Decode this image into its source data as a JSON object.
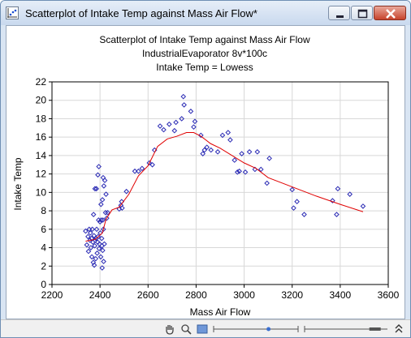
{
  "window": {
    "title": "Scatterplot of Intake Temp against Mass Air Flow*",
    "buttons": {
      "minimize": "minimize-icon",
      "maximize": "maximize-icon",
      "close": "close-icon"
    }
  },
  "chart_data": {
    "type": "scatter",
    "title": "Scatterplot of Intake Temp against Mass Air Flow",
    "subtitle": "IndustrialEvaporator 8v*100c",
    "subtitle2": "Intake Temp = Lowess",
    "xlabel": "Mass Air Flow",
    "ylabel": "Intake Temp",
    "xlim": [
      2200,
      3600
    ],
    "ylim": [
      0,
      22
    ],
    "xticks": [
      2200,
      2400,
      2600,
      2800,
      3000,
      3200,
      3400,
      3600
    ],
    "yticks": [
      0,
      2,
      4,
      6,
      8,
      10,
      12,
      14,
      16,
      18,
      20,
      22
    ],
    "grid": true,
    "colors": {
      "points": "#2a2ab4",
      "fit": "#e00000"
    },
    "series": [
      {
        "points": [
          [
            2340,
            5.8
          ],
          [
            2345,
            4.3
          ],
          [
            2350,
            5.2
          ],
          [
            2352,
            3.6
          ],
          [
            2355,
            6.0
          ],
          [
            2358,
            4.8
          ],
          [
            2360,
            5.6
          ],
          [
            2362,
            4.0
          ],
          [
            2365,
            5.0
          ],
          [
            2366,
            3.0
          ],
          [
            2368,
            6.0
          ],
          [
            2370,
            4.6
          ],
          [
            2372,
            2.4
          ],
          [
            2373,
            7.6
          ],
          [
            2375,
            5.3
          ],
          [
            2376,
            2.1
          ],
          [
            2378,
            4.2
          ],
          [
            2379,
            10.4
          ],
          [
            2380,
            4.8
          ],
          [
            2382,
            2.8
          ],
          [
            2383,
            5.0
          ],
          [
            2385,
            10.4
          ],
          [
            2386,
            6.0
          ],
          [
            2388,
            3.4
          ],
          [
            2390,
            4.6
          ],
          [
            2391,
            11.9
          ],
          [
            2392,
            5.2
          ],
          [
            2394,
            7.0
          ],
          [
            2395,
            12.8
          ],
          [
            2396,
            3.9
          ],
          [
            2398,
            4.4
          ],
          [
            2400,
            6.8
          ],
          [
            2401,
            5.6
          ],
          [
            2403,
            3.0
          ],
          [
            2404,
            8.7
          ],
          [
            2405,
            7.0
          ],
          [
            2407,
            5.0
          ],
          [
            2408,
            4.2
          ],
          [
            2409,
            1.8
          ],
          [
            2410,
            9.2
          ],
          [
            2411,
            3.7
          ],
          [
            2412,
            7.0
          ],
          [
            2413,
            11.6
          ],
          [
            2414,
            6.0
          ],
          [
            2415,
            2.5
          ],
          [
            2416,
            10.7
          ],
          [
            2418,
            4.4
          ],
          [
            2420,
            11.3
          ],
          [
            2423,
            7.8
          ],
          [
            2425,
            9.8
          ],
          [
            2428,
            7.2
          ],
          [
            2432,
            7.8
          ],
          [
            2480,
            8.2
          ],
          [
            2487,
            8.6
          ],
          [
            2490,
            9.0
          ],
          [
            2492,
            8.3
          ],
          [
            2510,
            10.1
          ],
          [
            2545,
            12.3
          ],
          [
            2560,
            12.3
          ],
          [
            2575,
            12.6
          ],
          [
            2605,
            13.2
          ],
          [
            2618,
            13.0
          ],
          [
            2627,
            14.6
          ],
          [
            2650,
            17.2
          ],
          [
            2665,
            16.8
          ],
          [
            2688,
            17.4
          ],
          [
            2710,
            16.7
          ],
          [
            2716,
            17.6
          ],
          [
            2740,
            18.0
          ],
          [
            2747,
            20.4
          ],
          [
            2750,
            19.5
          ],
          [
            2778,
            18.8
          ],
          [
            2790,
            17.1
          ],
          [
            2795,
            17.7
          ],
          [
            2820,
            16.2
          ],
          [
            2828,
            14.2
          ],
          [
            2835,
            14.6
          ],
          [
            2845,
            14.9
          ],
          [
            2862,
            14.6
          ],
          [
            2890,
            14.4
          ],
          [
            2910,
            16.2
          ],
          [
            2933,
            16.5
          ],
          [
            2942,
            15.7
          ],
          [
            2960,
            13.5
          ],
          [
            2972,
            12.2
          ],
          [
            2980,
            12.3
          ],
          [
            2990,
            14.2
          ],
          [
            3005,
            12.2
          ],
          [
            3022,
            14.4
          ],
          [
            3045,
            12.5
          ],
          [
            3055,
            14.4
          ],
          [
            3070,
            12.5
          ],
          [
            3095,
            11.0
          ],
          [
            3105,
            13.7
          ],
          [
            3200,
            10.3
          ],
          [
            3206,
            8.3
          ],
          [
            3220,
            9.0
          ],
          [
            3250,
            7.6
          ],
          [
            3368,
            9.1
          ],
          [
            3385,
            7.6
          ],
          [
            3390,
            10.4
          ],
          [
            3440,
            9.8
          ],
          [
            3495,
            8.5
          ]
        ]
      }
    ],
    "fit_line": [
      [
        2340,
        4.7
      ],
      [
        2380,
        4.9
      ],
      [
        2410,
        5.6
      ],
      [
        2425,
        7.1
      ],
      [
        2450,
        8.1
      ],
      [
        2480,
        8.4
      ],
      [
        2520,
        9.8
      ],
      [
        2560,
        11.8
      ],
      [
        2600,
        12.9
      ],
      [
        2640,
        15.0
      ],
      [
        2680,
        15.8
      ],
      [
        2720,
        16.1
      ],
      [
        2760,
        16.5
      ],
      [
        2790,
        16.5
      ],
      [
        2820,
        16.1
      ],
      [
        2860,
        15.3
      ],
      [
        2900,
        14.8
      ],
      [
        2950,
        14.0
      ],
      [
        3000,
        13.2
      ],
      [
        3050,
        12.6
      ],
      [
        3100,
        11.6
      ],
      [
        3200,
        10.6
      ],
      [
        3300,
        9.6
      ],
      [
        3400,
        8.7
      ],
      [
        3495,
        7.9
      ]
    ]
  },
  "statusbar": {
    "icons": [
      "hand-icon",
      "zoom-icon",
      "brightness-icon"
    ],
    "slider_levels": [
      0.65,
      0.85
    ]
  }
}
